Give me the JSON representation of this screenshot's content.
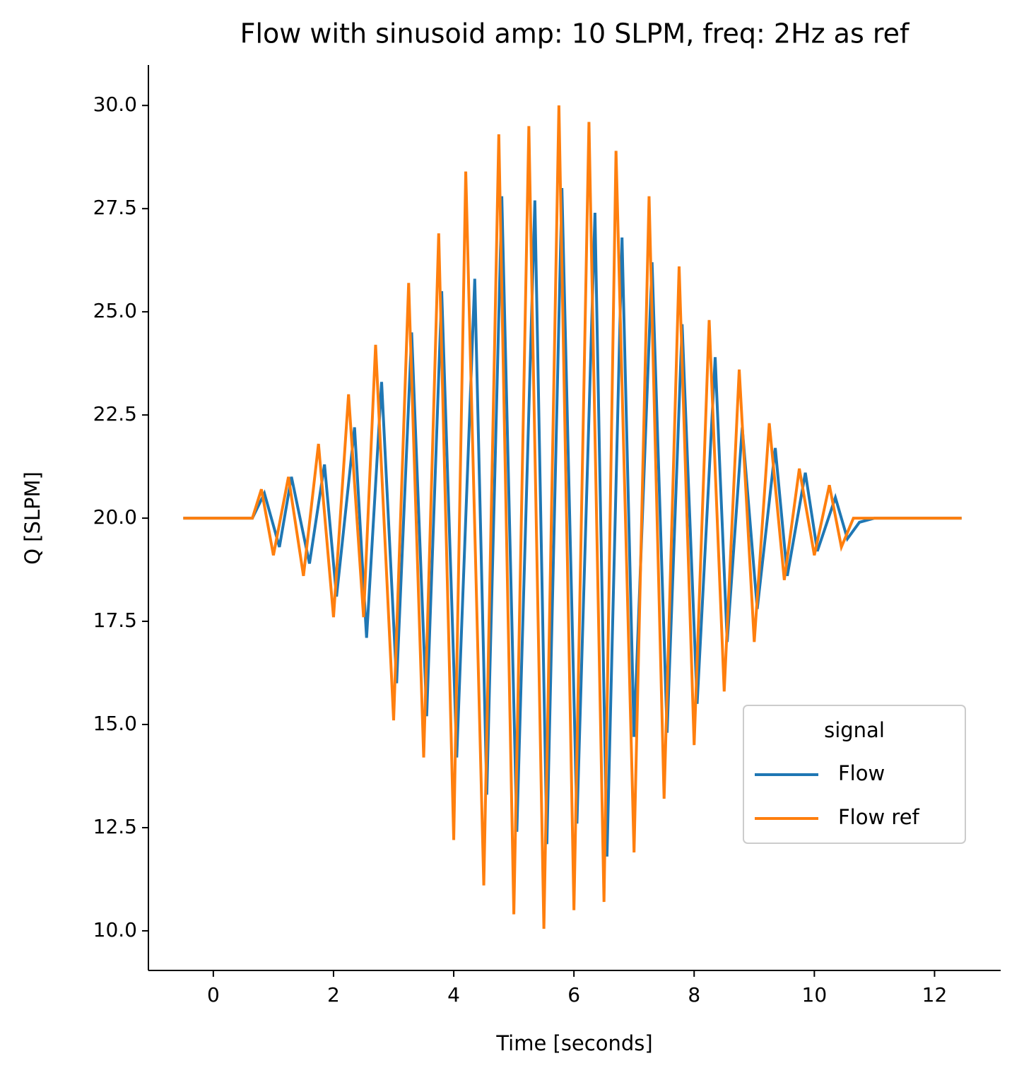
{
  "chart_data": {
    "type": "line",
    "title": "Flow with sinusoid amp: 10 SLPM, freq: 2Hz as ref",
    "x_label": "Time [seconds]",
    "y_label": "Q [SLPM]",
    "legend_title": "signal",
    "legend_position": "lower right",
    "xlim": [
      -1.08,
      13.1
    ],
    "ylim": [
      9.04,
      30.98
    ],
    "xticks": [
      0,
      2,
      4,
      6,
      8,
      10,
      12
    ],
    "yticks": [
      {
        "value": 10,
        "label": "10.0"
      },
      {
        "value": 12.5,
        "label": "12.5"
      },
      {
        "value": 15,
        "label": "15.0"
      },
      {
        "value": 17.5,
        "label": "17.5"
      },
      {
        "value": 20,
        "label": "20.0"
      },
      {
        "value": 22.5,
        "label": "22.5"
      },
      {
        "value": 25,
        "label": "25.0"
      },
      {
        "value": 27.5,
        "label": "27.5"
      },
      {
        "value": 30,
        "label": "30.0"
      }
    ],
    "series": [
      {
        "name": "Flow",
        "color": "#1f77b4",
        "x": [
          -0.5,
          0.65,
          0.85,
          1.1,
          1.3,
          1.6,
          1.85,
          2.05,
          2.35,
          2.55,
          2.8,
          3.05,
          3.3,
          3.55,
          3.8,
          4.05,
          4.35,
          4.55,
          4.8,
          5.05,
          5.35,
          5.55,
          5.8,
          6.05,
          6.35,
          6.55,
          6.8,
          7.0,
          7.3,
          7.55,
          7.8,
          8.05,
          8.35,
          8.55,
          8.8,
          9.05,
          9.35,
          9.55,
          9.85,
          10.05,
          10.35,
          10.55,
          10.75,
          11.0,
          12.45
        ],
        "values": [
          20,
          20,
          20.6,
          19.3,
          21.0,
          18.9,
          21.3,
          18.1,
          22.2,
          17.1,
          23.3,
          16.0,
          24.5,
          15.2,
          25.5,
          14.2,
          25.8,
          13.3,
          27.8,
          12.4,
          27.7,
          12.1,
          28.0,
          12.6,
          27.4,
          11.8,
          26.8,
          14.7,
          26.2,
          14.8,
          24.7,
          15.5,
          23.9,
          17.0,
          22.2,
          17.8,
          21.7,
          18.6,
          21.1,
          19.2,
          20.5,
          19.5,
          19.9,
          20,
          20
        ]
      },
      {
        "name": "Flow ref",
        "color": "#ff7f0e",
        "x": [
          -0.5,
          0.65,
          0.8,
          1.0,
          1.25,
          1.5,
          1.75,
          2.0,
          2.25,
          2.5,
          2.7,
          3.0,
          3.25,
          3.5,
          3.75,
          4.0,
          4.2,
          4.5,
          4.75,
          5.0,
          5.25,
          5.5,
          5.75,
          6.0,
          6.25,
          6.5,
          6.7,
          7.0,
          7.25,
          7.5,
          7.75,
          8.0,
          8.25,
          8.5,
          8.75,
          9.0,
          9.25,
          9.5,
          9.75,
          10.0,
          10.25,
          10.45,
          10.65,
          12.45
        ],
        "values": [
          20,
          20,
          20.7,
          19.1,
          21.0,
          18.6,
          21.8,
          17.6,
          23.0,
          17.6,
          24.2,
          15.1,
          25.7,
          14.2,
          26.9,
          12.2,
          28.4,
          11.1,
          29.3,
          10.4,
          29.5,
          10.05,
          30.0,
          10.5,
          29.6,
          10.7,
          28.9,
          11.9,
          27.8,
          13.2,
          26.1,
          14.5,
          24.8,
          15.8,
          23.6,
          17.0,
          22.3,
          18.5,
          21.2,
          19.1,
          20.8,
          19.3,
          20.0,
          20.0
        ]
      }
    ]
  }
}
